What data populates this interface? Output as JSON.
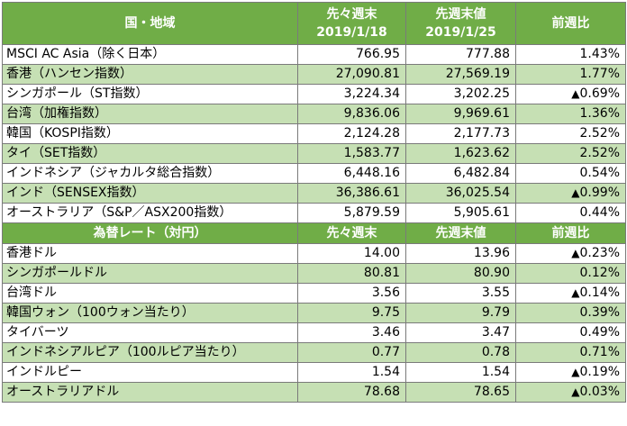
{
  "indices": {
    "headers": {
      "region": "国・地域",
      "prev_week_label": "先々週末",
      "prev_week_date": "2019/1/18",
      "last_week_label": "先週末値",
      "last_week_date": "2019/1/25",
      "change": "前週比"
    },
    "rows": [
      {
        "name": "MSCI AC Asia（除く日本）",
        "prev": "766.95",
        "last": "777.88",
        "change": "1.43%",
        "negative": false
      },
      {
        "name": "香港（ハンセン指数）",
        "prev": "27,090.81",
        "last": "27,569.19",
        "change": "1.77%",
        "negative": false
      },
      {
        "name": "シンガポール（ST指数）",
        "prev": "3,224.34",
        "last": "3,202.25",
        "change": "0.69%",
        "negative": true
      },
      {
        "name": "台湾（加権指数）",
        "prev": "9,836.06",
        "last": "9,969.61",
        "change": "1.36%",
        "negative": false
      },
      {
        "name": "韓国（KOSPI指数）",
        "prev": "2,124.28",
        "last": "2,177.73",
        "change": "2.52%",
        "negative": false
      },
      {
        "name": "タイ（SET指数）",
        "prev": "1,583.77",
        "last": "1,623.62",
        "change": "2.52%",
        "negative": false
      },
      {
        "name": "インドネシア（ジャカルタ総合指数）",
        "prev": "6,448.16",
        "last": "6,482.84",
        "change": "0.54%",
        "negative": false
      },
      {
        "name": "インド（SENSEX指数）",
        "prev": "36,386.61",
        "last": "36,025.54",
        "change": "0.99%",
        "negative": true
      },
      {
        "name": "オーストラリア（S&P／ASX200指数）",
        "prev": "5,879.59",
        "last": "5,905.61",
        "change": "0.44%",
        "negative": false
      }
    ]
  },
  "fx": {
    "headers": {
      "name": "為替レート（対円）",
      "prev": "先々週末",
      "last": "先週末値",
      "change": "前週比"
    },
    "rows": [
      {
        "name": "香港ドル",
        "prev": "14.00",
        "last": "13.96",
        "change": "0.23%",
        "negative": true
      },
      {
        "name": "シンガポールドル",
        "prev": "80.81",
        "last": "80.90",
        "change": "0.12%",
        "negative": false
      },
      {
        "name": "台湾ドル",
        "prev": "3.56",
        "last": "3.55",
        "change": "0.14%",
        "negative": true
      },
      {
        "name": "韓国ウォン（100ウォン当たり）",
        "prev": "9.75",
        "last": "9.79",
        "change": "0.39%",
        "negative": false
      },
      {
        "name": "タイバーツ",
        "prev": "3.46",
        "last": "3.47",
        "change": "0.49%",
        "negative": false
      },
      {
        "name": "インドネシアルピア（100ルピア当たり）",
        "prev": "0.77",
        "last": "0.78",
        "change": "0.71%",
        "negative": false
      },
      {
        "name": "インドルピー",
        "prev": "1.54",
        "last": "1.54",
        "change": "0.19%",
        "negative": true
      },
      {
        "name": "オーストラリアドル",
        "prev": "78.68",
        "last": "78.65",
        "change": "0.03%",
        "negative": true
      }
    ]
  },
  "neg_marker": "▲",
  "colors": {
    "header_green": "#70ad47",
    "row_light_green": "#c6e0b4",
    "negative_red": "#ff0000"
  }
}
